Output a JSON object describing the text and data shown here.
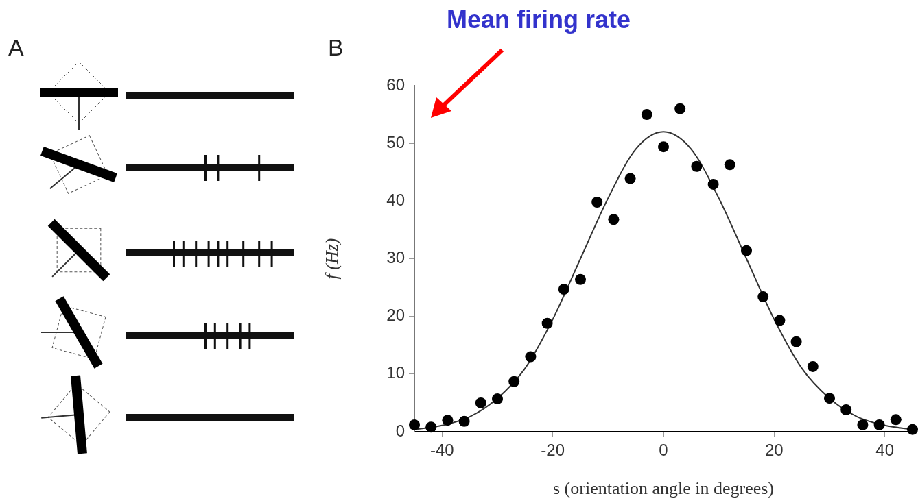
{
  "chart_data": {
    "type": "scatter",
    "title": "Mean firing rate",
    "xlabel": "s (orientation angle in degrees)",
    "ylabel": "f (Hz)",
    "annotations": [
      "A",
      "B"
    ],
    "xlim": [
      -45,
      45
    ],
    "xticks": [
      -40,
      -20,
      0,
      20,
      40
    ],
    "ylim": [
      0,
      60
    ],
    "yticks": [
      0,
      10,
      20,
      30,
      40,
      50,
      60
    ],
    "grid": false,
    "legend": false,
    "marker": "circle",
    "series": [
      {
        "color": "#000000",
        "x": [
          -45,
          -42,
          -39,
          -36,
          -33,
          -30,
          -27,
          -24,
          -21,
          -18,
          -15,
          -12,
          -9,
          -6,
          -3,
          0,
          3,
          6,
          9,
          12,
          15,
          18,
          21,
          24,
          27,
          30,
          33,
          36,
          39,
          42,
          45
        ],
        "values": [
          1.2,
          0.8,
          2,
          1.8,
          5,
          5.7,
          8.7,
          13,
          18.8,
          24.7,
          26.4,
          39.8,
          36.8,
          43.9,
          55,
          49.4,
          56,
          46,
          42.9,
          46.3,
          31.4,
          23.4,
          19.3,
          15.6,
          11.3,
          5.8,
          3.8,
          1.2,
          1.2,
          2.1,
          0.4
        ]
      },
      {
        "type": "line",
        "color": "#333333",
        "marker": "none",
        "line_style": "solid",
        "x": [
          -45,
          -40,
          -35,
          -30,
          -25,
          -20,
          -15,
          -10,
          -5,
          0,
          5,
          10,
          15,
          20,
          25,
          30,
          35,
          40,
          45
        ],
        "values": [
          0.4,
          1.1,
          2.6,
          5.8,
          11,
          19.5,
          30,
          40.5,
          49,
          52,
          49,
          40.5,
          30,
          19.5,
          11,
          5.8,
          2.6,
          1.1,
          0.4
        ]
      }
    ]
  }
}
